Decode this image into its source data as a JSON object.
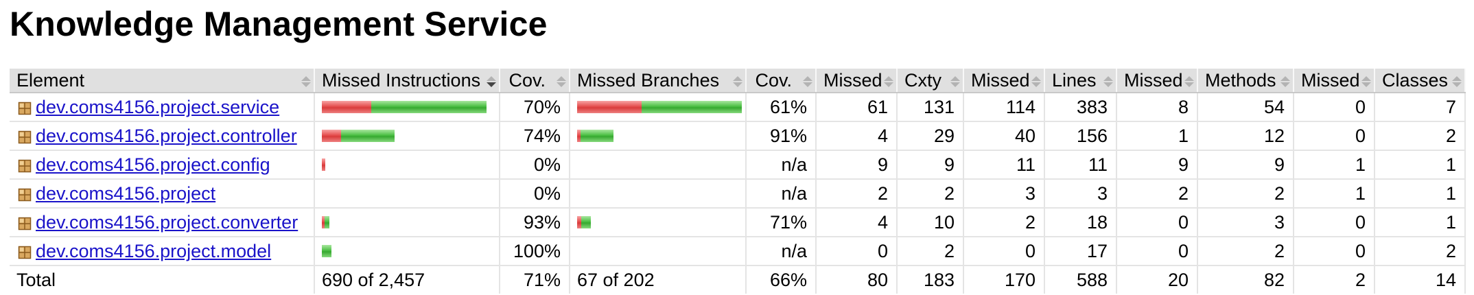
{
  "title": "Knowledge Management Service",
  "headers": {
    "element": "Element",
    "missed_instructions": "Missed Instructions",
    "cov1": "Cov.",
    "missed_branches": "Missed Branches",
    "cov2": "Cov.",
    "missed_cxty": "Missed",
    "cxty": "Cxty",
    "missed_lines": "Missed",
    "lines": "Lines",
    "missed_methods": "Missed",
    "methods": "Methods",
    "missed_classes": "Missed",
    "classes": "Classes"
  },
  "rows": [
    {
      "name": "dev.coms4156.project.service",
      "instr_missed_frac": 0.3,
      "instr_total_rel": 1.0,
      "instr_cov": "70%",
      "branch_missed_frac": 0.39,
      "branch_total_rel": 1.0,
      "branch_cov": "61%",
      "missed_cxty": "61",
      "cxty": "131",
      "missed_lines": "114",
      "lines": "383",
      "missed_methods": "8",
      "methods": "54",
      "missed_classes": "0",
      "classes": "7"
    },
    {
      "name": "dev.coms4156.project.controller",
      "instr_missed_frac": 0.26,
      "instr_total_rel": 0.44,
      "instr_cov": "74%",
      "branch_missed_frac": 0.09,
      "branch_total_rel": 0.22,
      "branch_cov": "91%",
      "missed_cxty": "4",
      "cxty": "29",
      "missed_lines": "40",
      "lines": "156",
      "missed_methods": "1",
      "methods": "12",
      "missed_classes": "0",
      "classes": "2"
    },
    {
      "name": "dev.coms4156.project.config",
      "instr_missed_frac": 1.0,
      "instr_total_rel": 0.02,
      "instr_cov": "0%",
      "branch_missed_frac": 0,
      "branch_total_rel": 0,
      "branch_cov": "n/a",
      "missed_cxty": "9",
      "cxty": "9",
      "missed_lines": "11",
      "lines": "11",
      "missed_methods": "9",
      "methods": "9",
      "missed_classes": "1",
      "classes": "1"
    },
    {
      "name": "dev.coms4156.project",
      "instr_missed_frac": 1.0,
      "instr_total_rel": 0.0,
      "instr_cov": "0%",
      "branch_missed_frac": 0,
      "branch_total_rel": 0,
      "branch_cov": "n/a",
      "missed_cxty": "2",
      "cxty": "2",
      "missed_lines": "3",
      "lines": "3",
      "missed_methods": "2",
      "methods": "2",
      "missed_classes": "1",
      "classes": "1"
    },
    {
      "name": "dev.coms4156.project.converter",
      "instr_missed_frac": 0.07,
      "instr_total_rel": 0.045,
      "instr_cov": "93%",
      "branch_missed_frac": 0.29,
      "branch_total_rel": 0.085,
      "branch_cov": "71%",
      "missed_cxty": "4",
      "cxty": "10",
      "missed_lines": "2",
      "lines": "18",
      "missed_methods": "0",
      "methods": "3",
      "missed_classes": "0",
      "classes": "1"
    },
    {
      "name": "dev.coms4156.project.model",
      "instr_missed_frac": 0.0,
      "instr_total_rel": 0.06,
      "instr_cov": "100%",
      "branch_missed_frac": 0,
      "branch_total_rel": 0,
      "branch_cov": "n/a",
      "missed_cxty": "0",
      "cxty": "2",
      "missed_lines": "0",
      "lines": "17",
      "missed_methods": "0",
      "methods": "2",
      "missed_classes": "0",
      "classes": "2"
    }
  ],
  "total": {
    "label": "Total",
    "instructions": "690 of 2,457",
    "instr_cov": "71%",
    "branches": "67 of 202",
    "branch_cov": "66%",
    "missed_cxty": "80",
    "cxty": "183",
    "missed_lines": "170",
    "lines": "588",
    "missed_methods": "20",
    "methods": "82",
    "missed_classes": "2",
    "classes": "14"
  },
  "colors": {
    "link": "#1a13c9",
    "bar_missed": "#e54f4f",
    "bar_covered": "#4cbf44",
    "header_bg": "#e0e0e0"
  },
  "icons": {
    "package": "package-icon",
    "sort": "sort-arrows-icon",
    "sort_active": "sort-descending-icon"
  }
}
